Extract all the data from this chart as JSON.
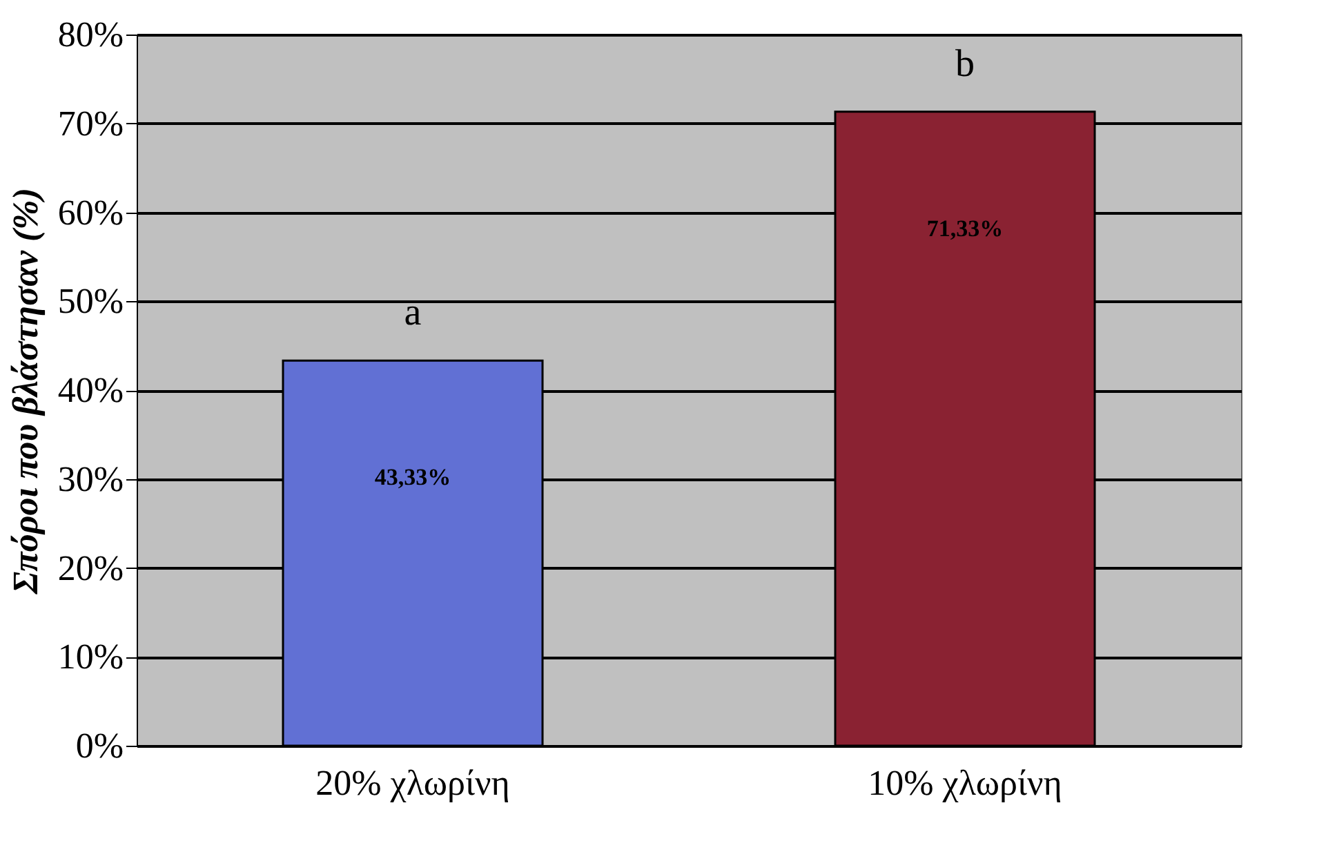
{
  "chart_data": {
    "type": "bar",
    "ylabel": "Σπόροι που βλάστησαν (%)",
    "categories": [
      "20% χλωρίνη",
      "10% χλωρίνη"
    ],
    "values": [
      43.33,
      71.33
    ],
    "colors": [
      "#6170d4",
      "#8a2232"
    ],
    "value_labels": [
      "43,33%",
      "71,33%"
    ],
    "annotations": [
      "a",
      "b"
    ],
    "ylim": [
      0,
      80
    ],
    "yticks": [
      {
        "value": 0,
        "label": "0%"
      },
      {
        "value": 10,
        "label": "10%"
      },
      {
        "value": 20,
        "label": "20%"
      },
      {
        "value": 30,
        "label": "30%"
      },
      {
        "value": 40,
        "label": "40%"
      },
      {
        "value": 50,
        "label": "50%"
      },
      {
        "value": 60,
        "label": "60%"
      },
      {
        "value": 70,
        "label": "70%"
      },
      {
        "value": 80,
        "label": "80%"
      }
    ],
    "grid": "y"
  }
}
